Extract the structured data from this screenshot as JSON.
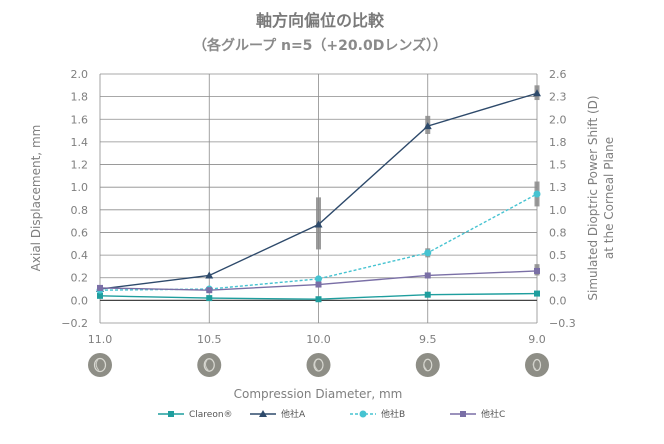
{
  "chart_data": {
    "type": "line",
    "title": "軸方向偏位の比較",
    "subtitle": "（各グループ n=5（+20.0Dレンズ））",
    "xlabel": "Compression Diameter, mm",
    "ylabel": "Axial Displacement, mm",
    "ylabel_right_line1": "Simulated Dioptric Power Shift (D)",
    "ylabel_right_line2": "at the Corneal Plane",
    "categories": [
      "11.0",
      "10.5",
      "10.0",
      "9.5",
      "9.0"
    ],
    "ylim": [
      -0.2,
      2.0
    ],
    "yticks": [
      "2.0",
      "1.8",
      "1.6",
      "1.4",
      "1.2",
      "1.0",
      "0.8",
      "0.6",
      "0.4",
      "0.2",
      "0.0",
      "−0.2"
    ],
    "ylim_right": [
      -0.3,
      2.6
    ],
    "yticks_right": [
      "2.6",
      "2.3",
      "2.0",
      "1.8",
      "1.5",
      "1.3",
      "1.0",
      "0.8",
      "0.5",
      "0.3",
      "0.0",
      "−0.3"
    ],
    "grid": true,
    "legend_position": "bottom",
    "series": [
      {
        "name": "Clareon®",
        "values": [
          0.04,
          0.02,
          0.01,
          0.05,
          0.06
        ],
        "color": "#1f9e9e",
        "marker": "square",
        "dashed": false
      },
      {
        "name": "他社A",
        "values": [
          0.1,
          0.22,
          0.67,
          1.54,
          1.83
        ],
        "color": "#2e4a6b",
        "marker": "triangle",
        "dashed": false
      },
      {
        "name": "他社B",
        "values": [
          0.09,
          0.1,
          0.19,
          0.42,
          0.94
        ],
        "color": "#46c3d1",
        "marker": "circle",
        "dashed": true
      },
      {
        "name": "他社C",
        "values": [
          0.11,
          0.09,
          0.14,
          0.22,
          0.26
        ],
        "color": "#7a6fa6",
        "marker": "square",
        "dashed": false
      }
    ],
    "error_bars": [
      {
        "category": "10.0",
        "low": 0.45,
        "high": 0.91
      },
      {
        "category": "9.5",
        "low": 1.47,
        "high": 1.63
      },
      {
        "category": "9.5",
        "low": 0.38,
        "high": 0.46
      },
      {
        "category": "9.0",
        "low": 1.77,
        "high": 1.9
      },
      {
        "category": "9.0",
        "low": 0.83,
        "high": 1.05
      },
      {
        "category": "9.0",
        "low": 0.22,
        "high": 0.32
      }
    ]
  }
}
